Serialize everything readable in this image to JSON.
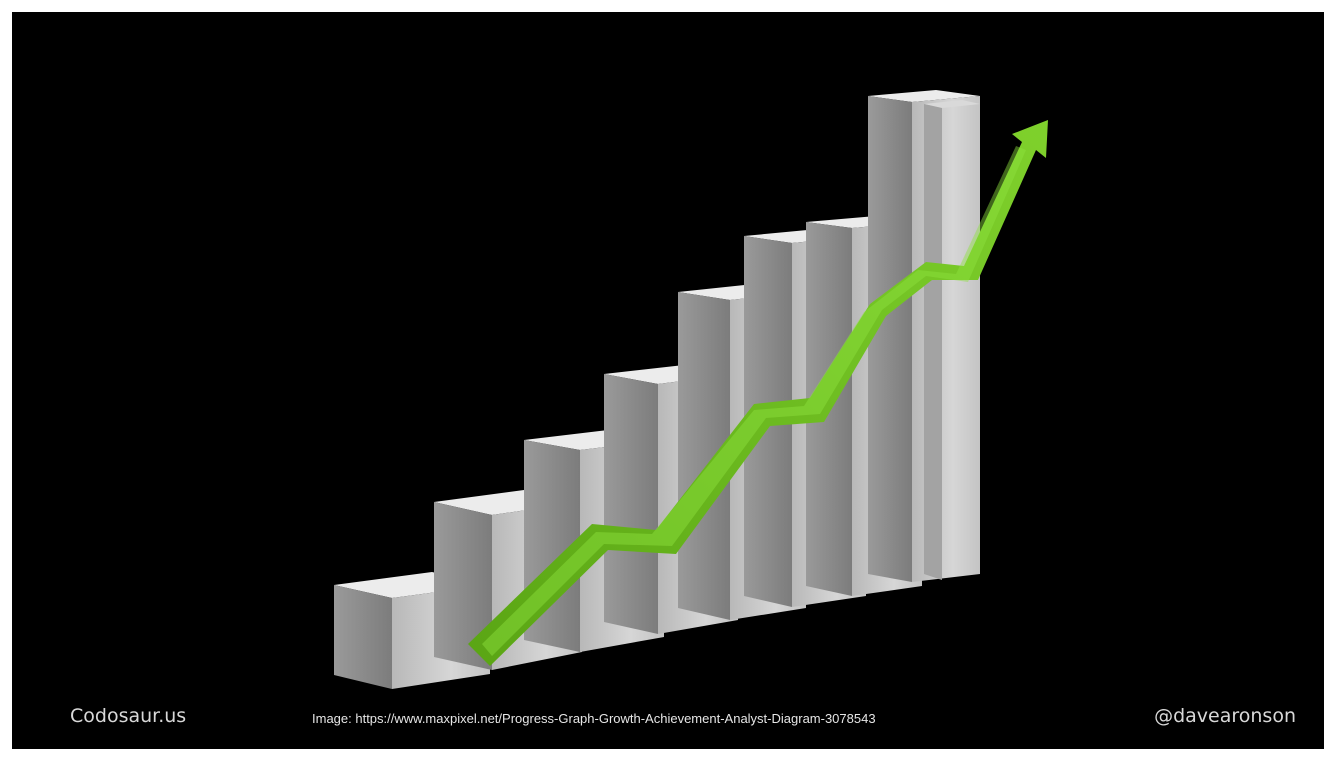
{
  "slide": {
    "footer_left": "Codosaur.us",
    "footer_center": "Image: https://www.maxpixel.net/Progress-Graph-Growth-Achievement-Analyst-Diagram-3078543",
    "footer_right": "@davearonson"
  },
  "illustration": {
    "description_name": "growth-bar-graph-with-arrow",
    "bar_count": 9,
    "colors": {
      "background": "#000000",
      "bar_front": "#cfcfcf",
      "bar_side": "#8d8d8d",
      "bar_top": "#efefef",
      "arrow": "#6bbf1f"
    }
  }
}
